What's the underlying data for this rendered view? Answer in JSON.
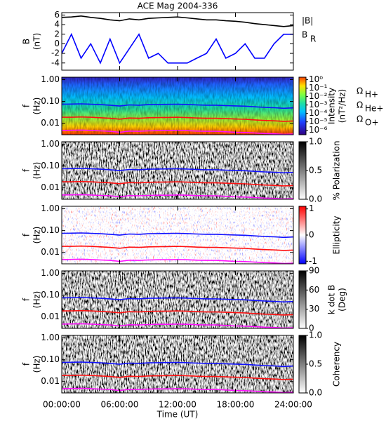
{
  "chart_data": [
    {
      "type": "line",
      "title": "ACE Mag 2004-336",
      "ylabel": [
        "B",
        "(nT)"
      ],
      "xlim": [
        0,
        24
      ],
      "ylim": [
        -5.5,
        6.5
      ],
      "yticks": [
        -4,
        -2,
        0,
        2,
        4,
        6
      ],
      "x": [
        0,
        1,
        2,
        3,
        4,
        5,
        6,
        7,
        8,
        9,
        10,
        11,
        12,
        13,
        14,
        15,
        16,
        17,
        18,
        19,
        20,
        21,
        22,
        23,
        24
      ],
      "series": [
        {
          "name": "|B|",
          "color": "#000000",
          "values": [
            5.5,
            5.6,
            5.8,
            5.5,
            5.3,
            5.0,
            4.8,
            5.2,
            5.0,
            5.3,
            5.4,
            5.5,
            5.6,
            5.4,
            5.2,
            5.0,
            5.0,
            4.8,
            4.7,
            4.5,
            4.2,
            4.0,
            3.8,
            3.6,
            3.8
          ]
        },
        {
          "name": "B",
          "sub": "R",
          "color": "#0000ff",
          "values": [
            -2,
            2,
            -3,
            0,
            -4,
            1,
            -4,
            -1,
            2,
            -3,
            -2,
            -4,
            -4,
            -4,
            -3,
            -2,
            1,
            -3,
            -2,
            0,
            -3,
            -3,
            0,
            2,
            2
          ]
        }
      ]
    },
    {
      "type": "spectrogram",
      "ylabel": [
        "f",
        "(Hz)"
      ],
      "yscale": "log",
      "xlim": [
        0,
        24
      ],
      "ylim": [
        0.003,
        1.3
      ],
      "yticks": [
        {
          "value": 1,
          "label": "1.00"
        },
        {
          "value": 0.1,
          "label": "0.10"
        },
        {
          "value": 0.01,
          "label": "0.01"
        }
      ],
      "colorbar": {
        "label": [
          "Intensity",
          "(nT²/Hz)"
        ],
        "colormap": "rainbow",
        "scale": "log",
        "lim": [
          3e-07,
          2
        ],
        "ticks": [
          {
            "value": 1,
            "label": "10⁰"
          },
          {
            "value": 0.1,
            "label": "10⁻¹"
          },
          {
            "value": 0.01,
            "label": "10⁻²"
          },
          {
            "value": 0.001,
            "label": "10⁻³"
          },
          {
            "value": 0.0001,
            "label": "10⁻⁴"
          },
          {
            "value": 1e-05,
            "label": "10⁻⁵"
          },
          {
            "value": 1e-06,
            "label": "10⁻⁶"
          }
        ]
      },
      "x": [
        0,
        1,
        2,
        3,
        4,
        5,
        6,
        7,
        8,
        9,
        10,
        11,
        12,
        13,
        14,
        15,
        16,
        17,
        18,
        19,
        20,
        21,
        22,
        23,
        24
      ],
      "series": [
        {
          "name": "Ω",
          "sub": "H+",
          "color": "#1010ff",
          "values": [
            0.075,
            0.076,
            0.078,
            0.075,
            0.072,
            0.068,
            0.062,
            0.07,
            0.068,
            0.072,
            0.073,
            0.074,
            0.075,
            0.073,
            0.07,
            0.068,
            0.068,
            0.065,
            0.063,
            0.061,
            0.057,
            0.054,
            0.052,
            0.049,
            0.051
          ]
        },
        {
          "name": "Ω",
          "sub": "He+",
          "color": "#ff1010",
          "values": [
            0.019,
            0.019,
            0.0195,
            0.019,
            0.018,
            0.017,
            0.0155,
            0.0175,
            0.017,
            0.018,
            0.0183,
            0.0185,
            0.019,
            0.0183,
            0.0175,
            0.017,
            0.017,
            0.0163,
            0.0158,
            0.0153,
            0.0143,
            0.0135,
            0.013,
            0.0123,
            0.0128
          ]
        },
        {
          "name": "Ω",
          "sub": "O+",
          "color": "#ff10ff",
          "values": [
            0.0047,
            0.0048,
            0.0049,
            0.0047,
            0.0045,
            0.0043,
            0.0039,
            0.0044,
            0.0043,
            0.0045,
            0.0046,
            0.0046,
            0.0047,
            0.0046,
            0.0044,
            0.0043,
            0.0043,
            0.0041,
            0.0039,
            0.0038,
            0.0036,
            0.0034,
            0.0033,
            0.0031,
            0.0032
          ]
        }
      ]
    },
    {
      "type": "spectrogram",
      "ylabel": [
        "f",
        "(Hz)"
      ],
      "yscale": "log",
      "xlim": [
        0,
        24
      ],
      "ylim": [
        0.003,
        1.3
      ],
      "yticks": [
        {
          "value": 1,
          "label": "1.00"
        },
        {
          "value": 0.1,
          "label": "0.10"
        },
        {
          "value": 0.01,
          "label": "0.01"
        }
      ],
      "colorbar": {
        "label": [
          "% Polarization"
        ],
        "colormap": "gray",
        "lim": [
          0,
          1
        ],
        "ticks": [
          {
            "value": 1,
            "label": "1.0"
          },
          0.5,
          {
            "value": 0,
            "label": "0.0"
          }
        ]
      }
    },
    {
      "type": "spectrogram",
      "ylabel": [
        "f",
        "(Hz)"
      ],
      "yscale": "log",
      "xlim": [
        0,
        24
      ],
      "ylim": [
        0.003,
        1.3
      ],
      "yticks": [
        {
          "value": 1,
          "label": "1.00"
        },
        {
          "value": 0.1,
          "label": "0.10"
        },
        {
          "value": 0.01,
          "label": "0.01"
        }
      ],
      "colorbar": {
        "label": [
          "Ellipticity"
        ],
        "colormap": "bwr",
        "lim": [
          -1.1,
          1.1
        ],
        "ticks": [
          1,
          0,
          -1
        ]
      }
    },
    {
      "type": "spectrogram",
      "ylabel": [
        "f",
        "(Hz)"
      ],
      "yscale": "log",
      "xlim": [
        0,
        24
      ],
      "ylim": [
        0.003,
        1.3
      ],
      "yticks": [
        {
          "value": 1,
          "label": "1.00"
        },
        {
          "value": 0.1,
          "label": "0.10"
        },
        {
          "value": 0.01,
          "label": "0.01"
        }
      ],
      "colorbar": {
        "label": [
          "k dot B",
          "(Deg)"
        ],
        "colormap": "gray",
        "lim": [
          0,
          90
        ],
        "ticks": [
          90,
          60,
          30,
          0
        ]
      }
    },
    {
      "type": "spectrogram",
      "ylabel": [
        "f",
        "(Hz)"
      ],
      "yscale": "log",
      "xlim": [
        0,
        24
      ],
      "ylim": [
        0.003,
        1.3
      ],
      "yticks": [
        {
          "value": 1,
          "label": "1.00"
        },
        {
          "value": 0.1,
          "label": "0.10"
        },
        {
          "value": 0.01,
          "label": "0.01"
        }
      ],
      "colorbar": {
        "label": [
          "Coherency"
        ],
        "colormap": "gray",
        "lim": [
          0,
          1
        ],
        "ticks": [
          {
            "value": 1,
            "label": "1.0"
          },
          0.5,
          {
            "value": 0,
            "label": "0.0"
          }
        ]
      },
      "xlabel": "Time (UT)",
      "xticks": [
        {
          "value": 0,
          "label": "00:00:00"
        },
        {
          "value": 6,
          "label": "06:00:00"
        },
        {
          "value": 12,
          "label": "12:00:00"
        },
        {
          "value": 18,
          "label": "18:00:00"
        },
        {
          "value": 24,
          "label": "24:00:00"
        }
      ]
    }
  ]
}
